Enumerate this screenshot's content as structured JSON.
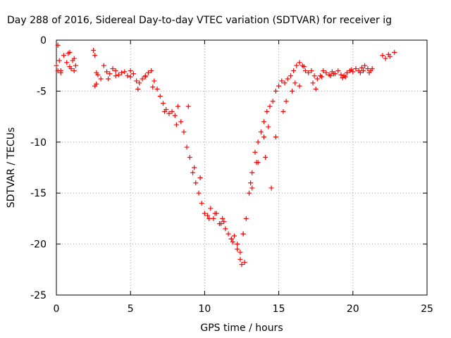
{
  "chart_data": {
    "type": "scatter",
    "title": "Day 288 of 2016, Sidereal Day-to-day VTEC variation (SDTVAR) for receiver ig",
    "xlabel": "GPS time / hours",
    "ylabel": "SDTVAR / TECUs",
    "xlim": [
      0,
      25
    ],
    "ylim": [
      -25,
      0
    ],
    "x_ticks": [
      "0",
      "5",
      "10",
      "15",
      "20",
      "25"
    ],
    "y_ticks": [
      "0",
      "-5",
      "-10",
      "-15",
      "-20",
      "-25"
    ],
    "grid": true,
    "marker": "+",
    "color": "#ff0000",
    "x": [
      0.0,
      0.1,
      0.2,
      0.3,
      0.5,
      0.7,
      0.8,
      0.9,
      1.0,
      1.1,
      1.2,
      1.3,
      2.5,
      2.6,
      2.7,
      2.8,
      3.0,
      3.2,
      3.4,
      3.6,
      3.8,
      4.0,
      4.2,
      4.4,
      4.6,
      4.8,
      5.0,
      5.2,
      5.4,
      5.6,
      5.8,
      6.0,
      6.2,
      6.4,
      6.6,
      6.8,
      7.0,
      7.2,
      7.4,
      7.6,
      7.8,
      8.0,
      8.2,
      8.4,
      8.6,
      8.8,
      9.0,
      9.2,
      9.4,
      9.6,
      9.8,
      10.0,
      10.2,
      10.4,
      10.6,
      10.8,
      11.0,
      11.2,
      11.4,
      11.6,
      11.8,
      12.0,
      12.2,
      12.4,
      12.6,
      12.8,
      13.0,
      13.2,
      13.4,
      13.6,
      13.8,
      14.0,
      14.2,
      14.4,
      14.6,
      14.8,
      15.0,
      15.2,
      15.4,
      15.6,
      15.8,
      16.0,
      16.2,
      16.4,
      16.6,
      16.8,
      17.0,
      17.2,
      17.4,
      17.6,
      17.8,
      18.0,
      18.2,
      18.4,
      18.6,
      18.8,
      19.0,
      19.2,
      19.4,
      19.6,
      19.8,
      20.0,
      20.2,
      20.4,
      20.6,
      20.8,
      21.0,
      21.2,
      22.0,
      22.2,
      22.4,
      22.8,
      0.1,
      0.9,
      1.2,
      2.6,
      3.5,
      4.0,
      5.5,
      6.0,
      8.9,
      9.3,
      10.3,
      11.1,
      11.8,
      12.2,
      12.5,
      12.7,
      13.2,
      13.6,
      14.0,
      14.5,
      14.1,
      15.3,
      15.9,
      16.4,
      17.5,
      18.5,
      19.5,
      20.5,
      21.3,
      0.3,
      2.7,
      5.0,
      6.5,
      7.3,
      8.1,
      9.7,
      10.7,
      11.3,
      11.9,
      12.4,
      12.6,
      13.1,
      13.5,
      14.3,
      14.8,
      15.5,
      16.1,
      16.7,
      17.3,
      17.9,
      18.7,
      19.3,
      19.9,
      20.7,
      21.1,
      22.5
    ],
    "y": [
      -2.5,
      -0.5,
      -2.0,
      -3.0,
      -1.5,
      -2.2,
      -1.3,
      -2.6,
      -2.8,
      -2.0,
      -3.0,
      -2.5,
      -1.0,
      -1.5,
      -3.2,
      -3.4,
      -3.8,
      -2.5,
      -3.1,
      -3.3,
      -2.8,
      -3.0,
      -3.4,
      -3.2,
      -3.1,
      -3.5,
      -3.6,
      -3.3,
      -4.0,
      -4.2,
      -3.8,
      -3.5,
      -3.2,
      -3.0,
      -4.0,
      -4.8,
      -5.5,
      -6.2,
      -6.8,
      -7.2,
      -7.0,
      -7.4,
      -6.5,
      -8.0,
      -9.0,
      -10.5,
      -11.5,
      -13.0,
      -14.0,
      -15.0,
      -16.0,
      -17.0,
      -17.2,
      -16.5,
      -17.5,
      -17.0,
      -18.0,
      -17.5,
      -18.5,
      -19.0,
      -19.5,
      -19.2,
      -20.0,
      -21.5,
      -19.0,
      -17.5,
      -15.0,
      -13.0,
      -11.0,
      -10.0,
      -9.0,
      -8.0,
      -7.0,
      -6.5,
      -6.0,
      -5.0,
      -4.5,
      -4.0,
      -4.2,
      -3.8,
      -3.5,
      -3.0,
      -2.5,
      -2.2,
      -2.5,
      -3.0,
      -3.2,
      -3.0,
      -3.5,
      -3.8,
      -3.5,
      -3.0,
      -3.2,
      -3.4,
      -3.1,
      -3.3,
      -3.0,
      -3.4,
      -3.5,
      -3.2,
      -3.0,
      -3.1,
      -2.8,
      -3.0,
      -2.7,
      -2.5,
      -2.8,
      -3.0,
      -1.5,
      -1.8,
      -1.4,
      -1.2,
      -3.0,
      -1.2,
      -1.8,
      -4.5,
      -3.8,
      -3.5,
      -4.8,
      -3.6,
      -6.5,
      -12.5,
      -17.5,
      -18.0,
      -19.5,
      -20.5,
      -22.0,
      -21.8,
      -14.5,
      -12.0,
      -9.5,
      -14.5,
      -11.5,
      -7.0,
      -5.0,
      -4.5,
      -4.8,
      -3.5,
      -3.6,
      -3.2,
      -2.8,
      -3.2,
      -4.3,
      -3.0,
      -4.6,
      -7.0,
      -8.3,
      -13.5,
      -17.0,
      -17.8,
      -19.8,
      -20.8,
      -19.0,
      -14.0,
      -12.0,
      -8.5,
      -9.5,
      -6.0,
      -4.2,
      -2.6,
      -4.2,
      -3.6,
      -3.3,
      -3.7,
      -2.9,
      -3.0,
      -3.2,
      -1.6
    ]
  }
}
